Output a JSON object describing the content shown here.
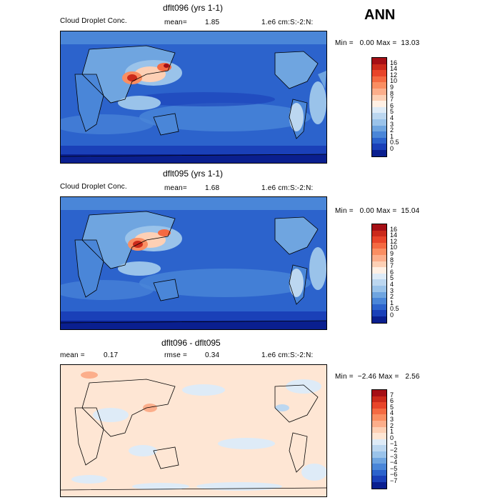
{
  "season": "ANN",
  "panels": [
    {
      "title": "dflt096 (yrs 1-1)",
      "left_label": "Cloud Droplet Conc.",
      "mid_label": "mean=",
      "mid_value": "1.85",
      "right_label": "1.e6 cm:S:-2:N:",
      "minmax": "Min =   0.00 Max =  13.03",
      "colorbar": {
        "labels": [
          "16",
          "14",
          "12",
          "10",
          "9",
          "8",
          "7",
          "6",
          "5",
          "4",
          "3",
          "2",
          "1",
          "0.5",
          "0"
        ],
        "colors": [
          "#a50f15",
          "#cb2a1b",
          "#e8452a",
          "#f46a42",
          "#fa8e62",
          "#fcae8b",
          "#fdd0b5",
          "#fff0e4",
          "#deebf7",
          "#bcd7f0",
          "#9ac3ea",
          "#6fa5e0",
          "#4a86d8",
          "#2c63cc",
          "#1a40b8",
          "#0a1f8f"
        ]
      }
    },
    {
      "title": "dflt095 (yrs 1-1)",
      "left_label": "Cloud Droplet Conc.",
      "mid_label": "mean=",
      "mid_value": "1.68",
      "right_label": "1.e6 cm:S:-2:N:",
      "minmax": "Min =   0.00 Max =  15.04",
      "colorbar": {
        "labels": [
          "16",
          "14",
          "12",
          "10",
          "9",
          "8",
          "7",
          "6",
          "5",
          "4",
          "3",
          "2",
          "1",
          "0.5",
          "0"
        ],
        "colors": [
          "#a50f15",
          "#cb2a1b",
          "#e8452a",
          "#f46a42",
          "#fa8e62",
          "#fcae8b",
          "#fdd0b5",
          "#fff0e4",
          "#deebf7",
          "#bcd7f0",
          "#9ac3ea",
          "#6fa5e0",
          "#4a86d8",
          "#2c63cc",
          "#1a40b8",
          "#0a1f8f"
        ]
      }
    },
    {
      "title": "dflt096 - dflt095",
      "left_label": "mean =",
      "left_value": "0.17",
      "mid_label": "rmse =",
      "mid_value": "0.34",
      "right_label": "1.e6 cm:S:-2:N:",
      "minmax": "Min =  −2.46 Max =   2.56",
      "colorbar": {
        "labels": [
          "7",
          "6",
          "5",
          "4",
          "3",
          "2",
          "1",
          "0",
          "−1",
          "−2",
          "−3",
          "−4",
          "−5",
          "−6",
          "−7"
        ],
        "colors": [
          "#a50f15",
          "#cb2a1b",
          "#e8452a",
          "#f46a42",
          "#fa8e62",
          "#fcae8b",
          "#fdd0b5",
          "#fee6d4",
          "#deebf7",
          "#bcd7f0",
          "#9ac3ea",
          "#6fa5e0",
          "#4a86d8",
          "#2c63cc",
          "#1a40b8",
          "#0a1f8f"
        ]
      }
    }
  ],
  "chart_data": [
    {
      "type": "heatmap",
      "title": "dflt096 (yrs 1-1)",
      "variable": "Cloud Droplet Conc.",
      "units": "1.e6 cm:S:-2:N:",
      "mean": 1.85,
      "min": 0.0,
      "max": 13.03,
      "levels": [
        0,
        0.5,
        1,
        2,
        3,
        4,
        5,
        6,
        7,
        8,
        9,
        10,
        12,
        14,
        16
      ]
    },
    {
      "type": "heatmap",
      "title": "dflt095 (yrs 1-1)",
      "variable": "Cloud Droplet Conc.",
      "units": "1.e6 cm:S:-2:N:",
      "mean": 1.68,
      "min": 0.0,
      "max": 15.04,
      "levels": [
        0,
        0.5,
        1,
        2,
        3,
        4,
        5,
        6,
        7,
        8,
        9,
        10,
        12,
        14,
        16
      ]
    },
    {
      "type": "heatmap",
      "title": "dflt096 - dflt095",
      "units": "1.e6 cm:S:-2:N:",
      "mean": 0.17,
      "rmse": 0.34,
      "min": -2.46,
      "max": 2.56,
      "levels": [
        -7,
        -6,
        -5,
        -4,
        -3,
        -2,
        -1,
        0,
        1,
        2,
        3,
        4,
        5,
        6,
        7
      ]
    }
  ]
}
